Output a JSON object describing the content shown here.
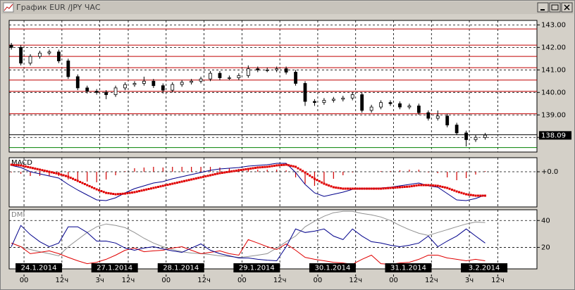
{
  "window": {
    "title": "График EUR /JPY ЧАС"
  },
  "chart_data": [
    {
      "type": "candlestick",
      "x": [
        -4,
        -1,
        2,
        5,
        8,
        11,
        14,
        17,
        20,
        23,
        26,
        29,
        32,
        35,
        38,
        41,
        44,
        47,
        50,
        53,
        56,
        59,
        62,
        65,
        68,
        71,
        74,
        77,
        80,
        83,
        86,
        89,
        92,
        95,
        98,
        101,
        104,
        107,
        110,
        113,
        116,
        119,
        122,
        125,
        128,
        131,
        134,
        137,
        140,
        143,
        146
      ],
      "open": [
        142.1,
        142.0,
        141.3,
        141.6,
        141.75,
        141.8,
        141.4,
        140.7,
        140.2,
        140.05,
        140.0,
        139.9,
        140.2,
        140.35,
        140.4,
        140.5,
        140.3,
        140.1,
        140.35,
        140.45,
        140.5,
        140.6,
        140.85,
        140.65,
        140.65,
        140.75,
        141.05,
        141.0,
        141.0,
        141.05,
        140.9,
        140.4,
        139.6,
        139.55,
        139.65,
        139.7,
        139.75,
        139.9,
        139.2,
        139.35,
        139.55,
        139.5,
        139.35,
        139.4,
        139.1,
        138.85,
        138.95,
        138.55,
        138.2,
        137.9,
        138.0
      ],
      "high": [
        142.2,
        142.1,
        141.7,
        141.85,
        141.9,
        141.9,
        141.5,
        140.8,
        140.3,
        140.15,
        140.1,
        140.3,
        140.45,
        140.5,
        140.7,
        140.6,
        140.4,
        140.45,
        140.55,
        140.6,
        140.7,
        140.95,
        140.95,
        140.75,
        140.85,
        141.2,
        141.15,
        141.1,
        141.15,
        141.15,
        141.0,
        140.5,
        139.7,
        139.75,
        139.8,
        139.85,
        140.0,
        140.0,
        139.45,
        139.65,
        139.65,
        139.6,
        139.5,
        139.5,
        139.2,
        139.2,
        139.05,
        138.65,
        138.3,
        138.1,
        138.2
      ],
      "low": [
        141.9,
        141.2,
        141.2,
        141.5,
        141.65,
        141.3,
        140.6,
        140.1,
        139.95,
        139.9,
        139.7,
        139.8,
        140.1,
        140.25,
        140.3,
        140.2,
        139.95,
        140.0,
        140.25,
        140.35,
        140.4,
        140.5,
        140.55,
        140.55,
        140.55,
        140.65,
        140.9,
        140.9,
        140.9,
        140.8,
        140.3,
        139.4,
        139.4,
        139.45,
        139.55,
        139.6,
        139.65,
        139.1,
        139.1,
        139.25,
        139.4,
        139.25,
        139.25,
        139.0,
        138.75,
        138.75,
        138.45,
        138.1,
        137.6,
        137.8,
        137.9
      ],
      "close": [
        142.0,
        141.3,
        141.6,
        141.75,
        141.8,
        141.4,
        140.7,
        140.2,
        140.05,
        140.0,
        139.9,
        140.2,
        140.35,
        140.4,
        140.5,
        140.3,
        140.1,
        140.35,
        140.45,
        140.5,
        140.6,
        140.85,
        140.65,
        140.65,
        140.75,
        141.05,
        141.0,
        141.0,
        141.05,
        140.9,
        140.4,
        139.6,
        139.55,
        139.65,
        139.7,
        139.75,
        139.9,
        139.2,
        139.35,
        139.55,
        139.5,
        139.35,
        139.4,
        139.1,
        138.85,
        138.95,
        138.55,
        138.2,
        137.9,
        138.0,
        138.1
      ],
      "color": "#000000",
      "ylim": [
        137.35,
        143.2
      ],
      "yticks": [
        {
          "value": 138,
          "label": "138.00"
        },
        {
          "value": 139,
          "label": "139.00"
        },
        {
          "value": 140,
          "label": "140.00"
        },
        {
          "value": 141,
          "label": "141.00"
        },
        {
          "value": 142,
          "label": "142.00"
        },
        {
          "value": 143,
          "label": "143.00"
        }
      ],
      "levels": [
        {
          "value": 142.82,
          "color": "#c00000"
        },
        {
          "value": 142.1,
          "color": "#c00000"
        },
        {
          "value": 141.6,
          "color": "#c00000"
        },
        {
          "value": 141.1,
          "color": "#c00000"
        },
        {
          "value": 140.55,
          "color": "#c00000"
        },
        {
          "value": 140.05,
          "color": "#c00000"
        },
        {
          "value": 139.05,
          "color": "#c00000"
        },
        {
          "value": 138.12,
          "color": "#000000"
        },
        {
          "value": 137.55,
          "color": "#008000"
        }
      ],
      "current_price": 138.09,
      "grid": true
    },
    {
      "type": "macd",
      "title": "MACD",
      "x": [
        -4,
        -1,
        2,
        5,
        8,
        11,
        14,
        17,
        20,
        23,
        26,
        29,
        32,
        35,
        38,
        41,
        44,
        47,
        50,
        53,
        56,
        59,
        62,
        65,
        68,
        71,
        74,
        77,
        80,
        83,
        86,
        89,
        92,
        95,
        98,
        101,
        104,
        107,
        110,
        113,
        116,
        119,
        122,
        125,
        128,
        131,
        134,
        137,
        140,
        143,
        146
      ],
      "series": [
        {
          "style": "bar",
          "color": "#d00000",
          "values": [
            -0.01,
            -0.03,
            -0.06,
            -0.06,
            -0.06,
            -0.06,
            -0.11,
            -0.13,
            -0.14,
            -0.15,
            -0.11,
            -0.05,
            0.01,
            0.05,
            0.06,
            0.07,
            0.06,
            0.07,
            0.07,
            0.07,
            0.07,
            0.07,
            0.06,
            0.05,
            0.04,
            0.04,
            0.03,
            0.03,
            0.03,
            0.02,
            -0.08,
            -0.17,
            -0.2,
            -0.18,
            -0.1,
            -0.05,
            -0.01,
            0.0,
            0.0,
            0.01,
            0.01,
            0.02,
            0.03,
            0.03,
            -0.01,
            -0.02,
            -0.08,
            -0.12,
            -0.09,
            -0.04,
            0.01
          ]
        },
        {
          "style": "line",
          "color": "#00008b",
          "values": [
            0.09,
            0.06,
            0.0,
            -0.03,
            -0.06,
            -0.09,
            -0.18,
            -0.26,
            -0.33,
            -0.4,
            -0.41,
            -0.37,
            -0.3,
            -0.24,
            -0.2,
            -0.16,
            -0.14,
            -0.1,
            -0.07,
            -0.04,
            -0.01,
            0.02,
            0.04,
            0.05,
            0.06,
            0.08,
            0.09,
            0.1,
            0.12,
            0.12,
            -0.01,
            -0.18,
            -0.3,
            -0.35,
            -0.32,
            -0.29,
            -0.25,
            -0.24,
            -0.24,
            -0.23,
            -0.22,
            -0.2,
            -0.18,
            -0.16,
            -0.2,
            -0.22,
            -0.31,
            -0.4,
            -0.41,
            -0.38,
            -0.33
          ]
        },
        {
          "style": "dots",
          "color": "#e00000",
          "values": [
            0.1,
            0.09,
            0.06,
            0.03,
            0.0,
            -0.03,
            -0.07,
            -0.13,
            -0.19,
            -0.25,
            -0.3,
            -0.32,
            -0.31,
            -0.29,
            -0.26,
            -0.23,
            -0.2,
            -0.17,
            -0.14,
            -0.11,
            -0.08,
            -0.05,
            -0.02,
            0.0,
            0.02,
            0.04,
            0.06,
            0.07,
            0.09,
            0.1,
            0.07,
            -0.01,
            -0.1,
            -0.17,
            -0.22,
            -0.24,
            -0.24,
            -0.24,
            -0.24,
            -0.24,
            -0.23,
            -0.22,
            -0.21,
            -0.19,
            -0.19,
            -0.2,
            -0.23,
            -0.28,
            -0.32,
            -0.34,
            -0.34
          ]
        }
      ],
      "ylim": [
        -0.5,
        0.2
      ],
      "yticks": [
        {
          "value": 0,
          "label": "+0.0"
        }
      ],
      "grid": true
    },
    {
      "type": "line",
      "title": "DMI",
      "x": [
        -4,
        -1,
        2,
        5,
        8,
        11,
        14,
        17,
        20,
        23,
        26,
        29,
        32,
        35,
        38,
        41,
        44,
        47,
        50,
        53,
        56,
        59,
        62,
        65,
        68,
        71,
        74,
        77,
        80,
        83,
        86,
        89,
        92,
        95,
        98,
        101,
        104,
        107,
        110,
        113,
        116,
        119,
        122,
        125,
        128,
        131,
        134,
        137,
        140,
        143,
        146
      ],
      "series": [
        {
          "color": "#909090",
          "values": [
            23.2,
            20.5,
            18.4,
            16.8,
            15.3,
            13.7,
            20.5,
            25.8,
            31.1,
            35.3,
            37.4,
            36.3,
            34.7,
            31.1,
            26.8,
            23.2,
            20.5,
            18.4,
            16.8,
            15.8,
            15.3,
            14.7,
            13.7,
            13.2,
            12.6,
            13.2,
            14.2,
            15.3,
            19.5,
            24.2,
            28.4,
            35.3,
            39.5,
            43.2,
            45.8,
            46.8,
            46.8,
            45.3,
            44.2,
            42.6,
            40.0,
            36.3,
            33.2,
            30.5,
            28.9,
            31.1,
            33.2,
            35.3,
            37.4,
            38.9,
            38.4
          ]
        },
        {
          "color": "#e00000",
          "values": [
            23.2,
            20.5,
            15.3,
            16.3,
            17.4,
            15.3,
            12.6,
            10.0,
            7.9,
            8.9,
            11.1,
            14.2,
            17.9,
            19.5,
            16.8,
            17.4,
            17.9,
            19.5,
            20.5,
            17.9,
            15.3,
            16.3,
            17.4,
            15.3,
            14.2,
            25.8,
            23.2,
            20.5,
            18.4,
            22.6,
            17.9,
            12.6,
            11.1,
            10.0,
            8.9,
            8.4,
            7.4,
            11.1,
            14.2,
            7.9,
            7.4,
            8.4,
            8.9,
            11.1,
            14.2,
            14.2,
            12.1,
            11.1,
            10.0,
            11.1,
            10.0
          ]
        },
        {
          "color": "#00008b",
          "values": [
            20.5,
            36.3,
            29.5,
            24.2,
            20.5,
            23.2,
            35.3,
            35.3,
            31.1,
            24.7,
            24.7,
            23.2,
            19.5,
            17.9,
            19.5,
            20.5,
            18.9,
            17.4,
            16.3,
            19.5,
            22.6,
            17.9,
            15.3,
            13.7,
            12.1,
            12.1,
            11.1,
            10.5,
            10.0,
            20.5,
            33.7,
            31.1,
            32.1,
            33.7,
            28.4,
            25.8,
            33.7,
            28.4,
            24.2,
            23.2,
            21.6,
            20.5,
            21.6,
            23.2,
            28.4,
            20.5,
            24.7,
            28.4,
            33.7,
            28.4,
            23.2
          ]
        }
      ],
      "ylim": [
        4,
        48
      ],
      "yticks": [
        20,
        40
      ],
      "xlim": [
        -4.7,
        162.4
      ],
      "xticks": [
        {
          "value": 0,
          "label": "00"
        },
        {
          "value": 12,
          "label": "12ч"
        },
        {
          "value": 24,
          "label": "3ч"
        },
        {
          "value": 33,
          "label": "12ч"
        },
        {
          "value": 45,
          "label": "00"
        },
        {
          "value": 57,
          "label": "12ч"
        },
        {
          "value": 69,
          "label": "00"
        },
        {
          "value": 81,
          "label": "12ч"
        },
        {
          "value": 93,
          "label": "00"
        },
        {
          "value": 105,
          "label": "12ч"
        },
        {
          "value": 117,
          "label": "00"
        },
        {
          "value": 129,
          "label": "12ч"
        },
        {
          "value": 141,
          "label": "3ч"
        },
        {
          "value": 150,
          "label": "12ч"
        }
      ],
      "date_labels": [
        {
          "value": 0,
          "label": "24.1.2014"
        },
        {
          "value": 24,
          "label": "27.1.2014"
        },
        {
          "value": 45,
          "label": "28.1.2014"
        },
        {
          "value": 69,
          "label": "29.1.2014"
        },
        {
          "value": 93,
          "label": "30.1.2014"
        },
        {
          "value": 117,
          "label": "31.1.2014"
        },
        {
          "value": 141,
          "label": "3.2.2014"
        }
      ],
      "grid": true
    }
  ]
}
